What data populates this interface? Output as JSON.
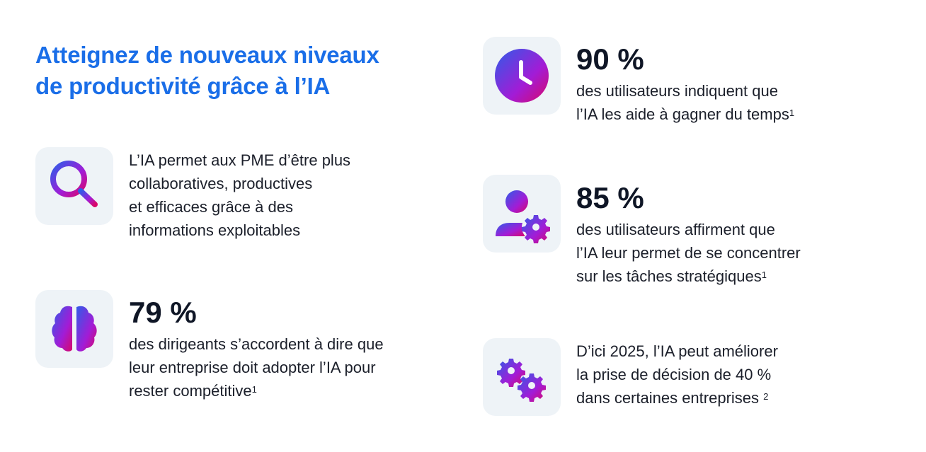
{
  "title": {
    "line1": "Atteignez de nouveaux niveaux",
    "line2": "de productivité grâce à l’IA"
  },
  "accent_color": "#1a6ee8",
  "icon_gradient": [
    "#2f5ce8",
    "#a21cd6",
    "#d8086a"
  ],
  "items": [
    {
      "icon": "search-icon",
      "lines": [
        "L’IA permet aux PME d’être plus",
        "collaboratives, productives",
        "et efficaces grâce à des",
        "informations exploitables"
      ]
    },
    {
      "icon": "brain-icon",
      "stat": "79 %",
      "lines": [
        "des dirigeants s’accordent à dire que",
        "leur entreprise doit adopter l’IA pour",
        "rester compétitive"
      ],
      "note": "1"
    },
    {
      "icon": "clock-icon",
      "stat": "90 %",
      "lines": [
        "des utilisateurs indiquent que",
        "l’IA les aide à gagner du temps"
      ],
      "note": "1"
    },
    {
      "icon": "user-gear-icon",
      "stat": "85 %",
      "lines": [
        "des utilisateurs affirment que",
        "l’IA leur permet de se concentrer",
        "sur les tâches stratégiques"
      ],
      "note": "1"
    },
    {
      "icon": "gears-icon",
      "lines": [
        "D’ici 2025, l’IA peut améliorer",
        "la prise de décision de 40 %",
        "dans certaines entreprises "
      ],
      "note": "2"
    }
  ]
}
